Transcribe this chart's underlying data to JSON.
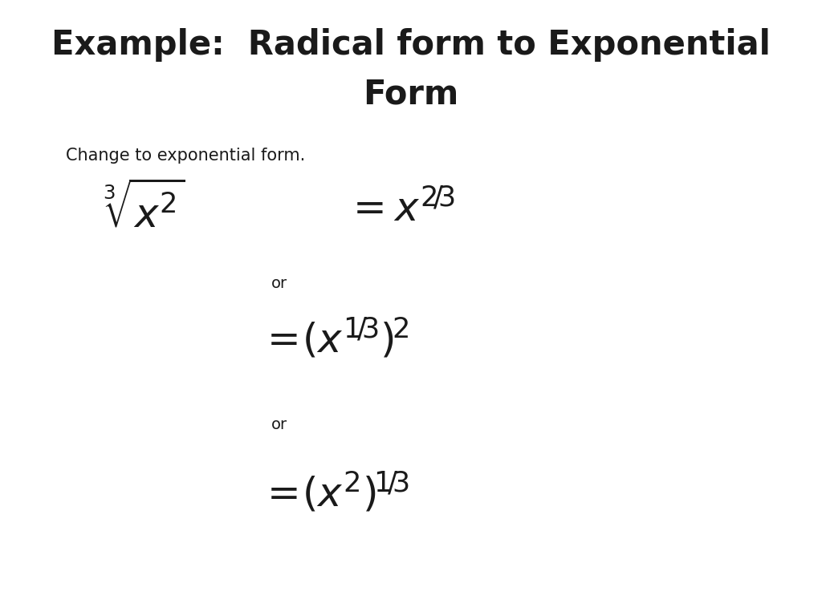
{
  "bg_color": "#ffffff",
  "title_line1": "Example:  Radical form to Exponential",
  "title_line2": "Form",
  "title_fontsize": 30,
  "title_color": "#1a1a1a",
  "subtitle": "Change to exponential form.",
  "subtitle_fontsize": 15,
  "subtitle_color": "#1a1a1a",
  "math_color": "#1a1a1a",
  "or_fontsize": 14,
  "or_color": "#1a1a1a",
  "fig_width": 10.24,
  "fig_height": 7.68,
  "dpi": 100
}
